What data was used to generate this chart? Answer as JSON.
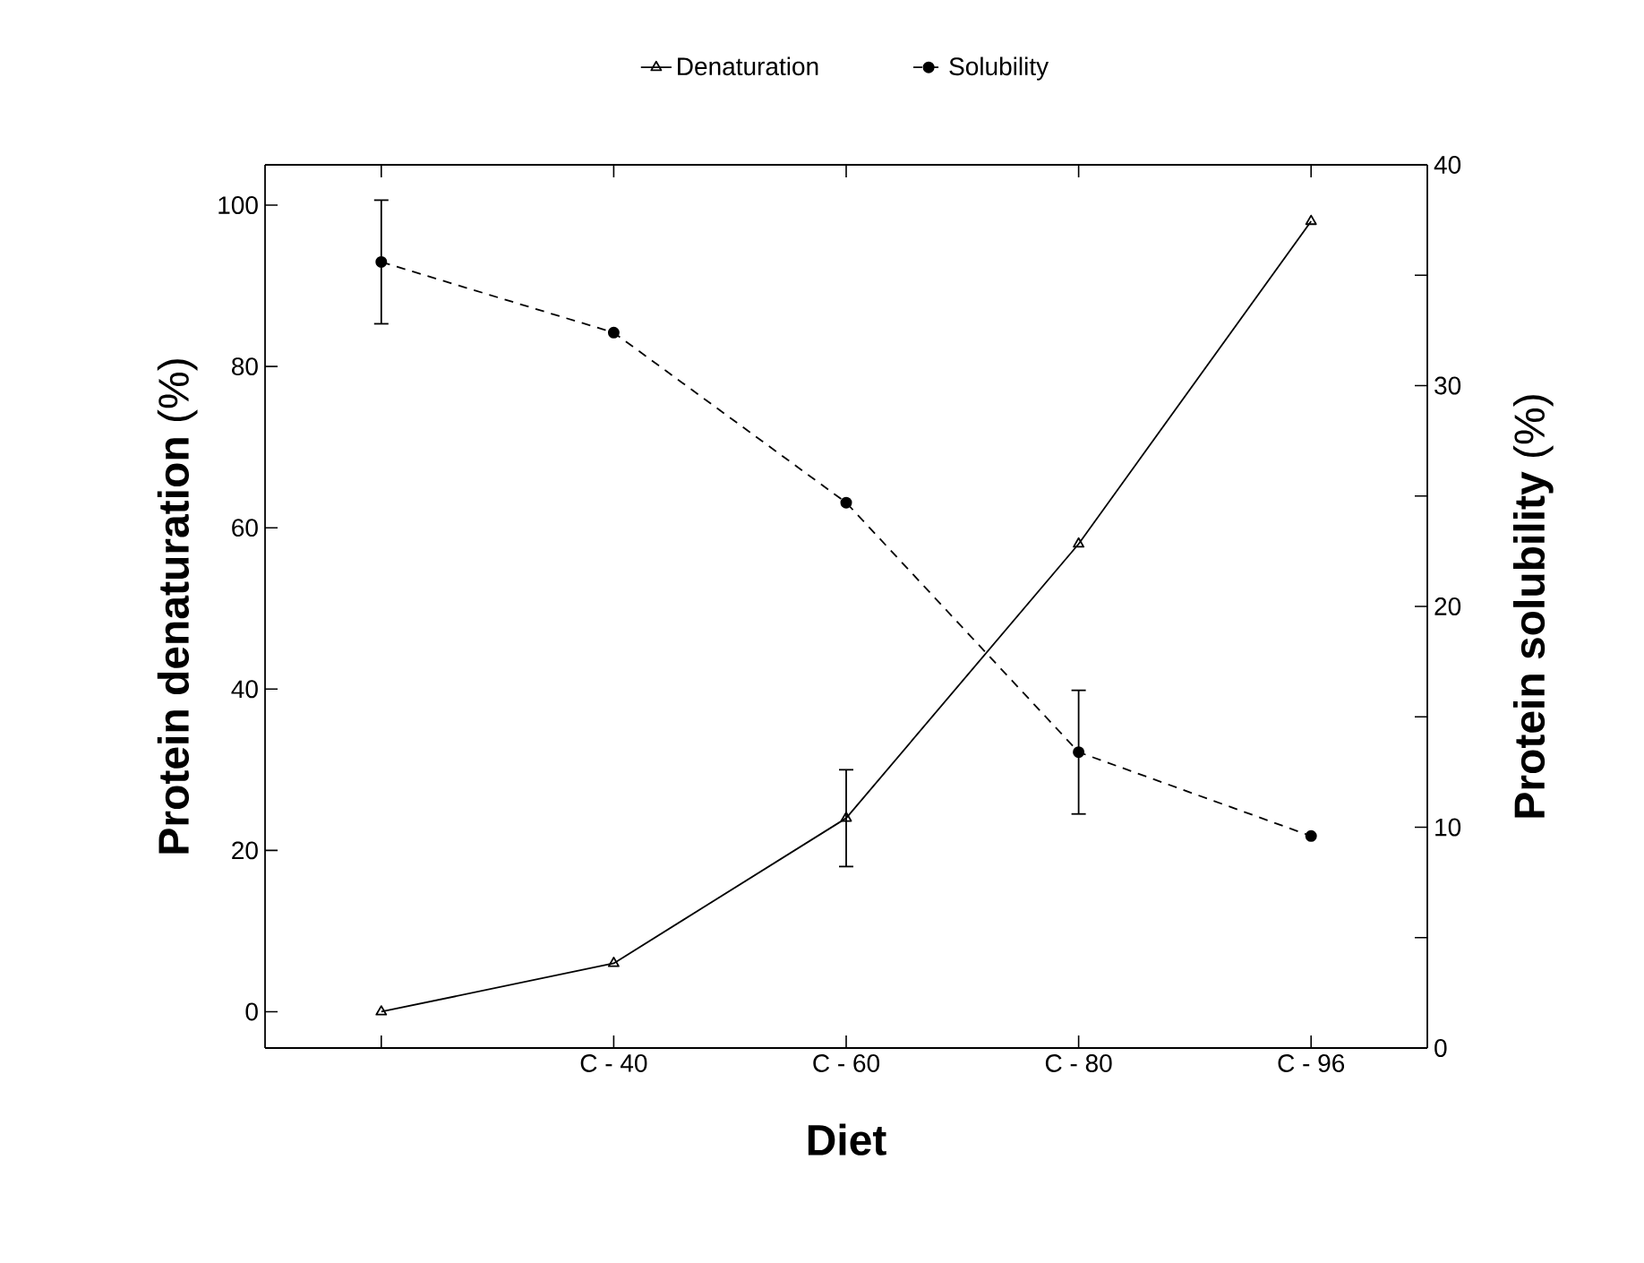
{
  "chart_data": {
    "type": "line",
    "xlabel": "Diet",
    "ylabel": "**Protein denaturation** (%)",
    "y2label": "**Protein solubility** (%)",
    "categories": [
      null,
      "C - 40",
      "C - 60",
      "C - 80",
      "C - 96"
    ],
    "series": [
      {
        "name": "Denaturation",
        "color": "#000000",
        "axis": "y",
        "marker": "triangle",
        "line_style": "solid",
        "values": [
          0,
          6,
          24,
          58,
          98
        ],
        "errors": [
          null,
          null,
          6,
          null,
          null
        ]
      },
      {
        "name": "Solubility",
        "color": "#000000",
        "axis": "y2",
        "marker": "circle",
        "line_style": "dashed",
        "values": [
          35.6,
          32.4,
          24.7,
          13.4,
          9.6
        ],
        "errors": [
          2.8,
          null,
          null,
          2.8,
          null
        ]
      }
    ],
    "ylim": [
      -4.5,
      105
    ],
    "yticks": [
      0,
      20,
      40,
      60,
      80,
      100
    ],
    "y2lim": [
      0,
      40
    ],
    "y2ticks": [
      0,
      {
        "value": 5,
        "label": null
      },
      10,
      {
        "value": 15,
        "label": null
      },
      20,
      {
        "value": 25,
        "label": null
      },
      30,
      {
        "value": 35,
        "label": null
      },
      40
    ],
    "legend": "top"
  }
}
